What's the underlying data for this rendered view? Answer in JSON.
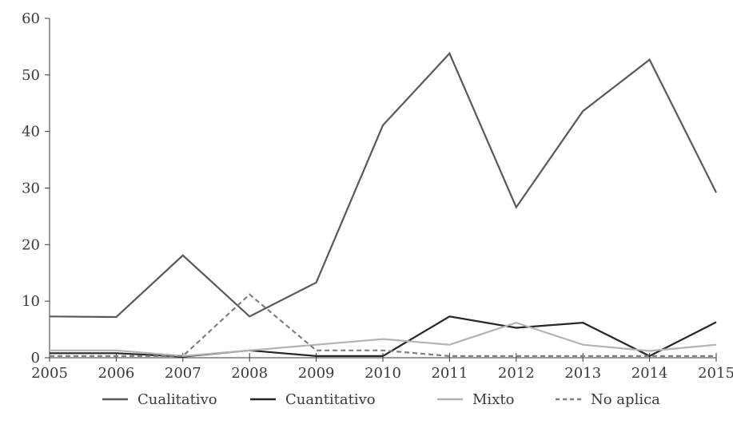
{
  "chart_data": {
    "type": "line",
    "x": [
      2005,
      2006,
      2007,
      2008,
      2009,
      2010,
      2011,
      2012,
      2013,
      2014,
      2015
    ],
    "ylim": [
      0,
      60
    ],
    "yticks": [
      0,
      10,
      20,
      30,
      40,
      50,
      60
    ],
    "xticks": [
      "2005",
      "2006",
      "2007",
      "2008",
      "2009",
      "2010",
      "2011",
      "2012",
      "2013",
      "2014",
      "2015"
    ],
    "grid": false,
    "legend_position": "bottom",
    "series": [
      {
        "name": "Cualitativo",
        "color": "#595959",
        "dash": "solid",
        "values": [
          7.3,
          7.2,
          18.1,
          7.3,
          13.3,
          41.1,
          53.8,
          26.6,
          43.6,
          52.7,
          29.2
        ]
      },
      {
        "name": "Cuantitativo",
        "color": "#262626",
        "dash": "solid",
        "values": [
          0.8,
          0.8,
          0.2,
          1.3,
          0.3,
          0.3,
          7.3,
          5.3,
          6.2,
          0.3,
          6.3
        ]
      },
      {
        "name": "Mixto",
        "color": "#b3b3b3",
        "dash": "solid",
        "values": [
          1.3,
          1.3,
          0.3,
          1.3,
          2.3,
          3.3,
          2.3,
          6.2,
          2.3,
          1.2,
          2.3
        ]
      },
      {
        "name": "No aplica",
        "color": "#7f7f7f",
        "dash": "dashed",
        "values": [
          0.3,
          0.3,
          0.3,
          11.2,
          1.3,
          1.3,
          0.3,
          0.3,
          0.3,
          0.3,
          0.3
        ]
      }
    ]
  }
}
